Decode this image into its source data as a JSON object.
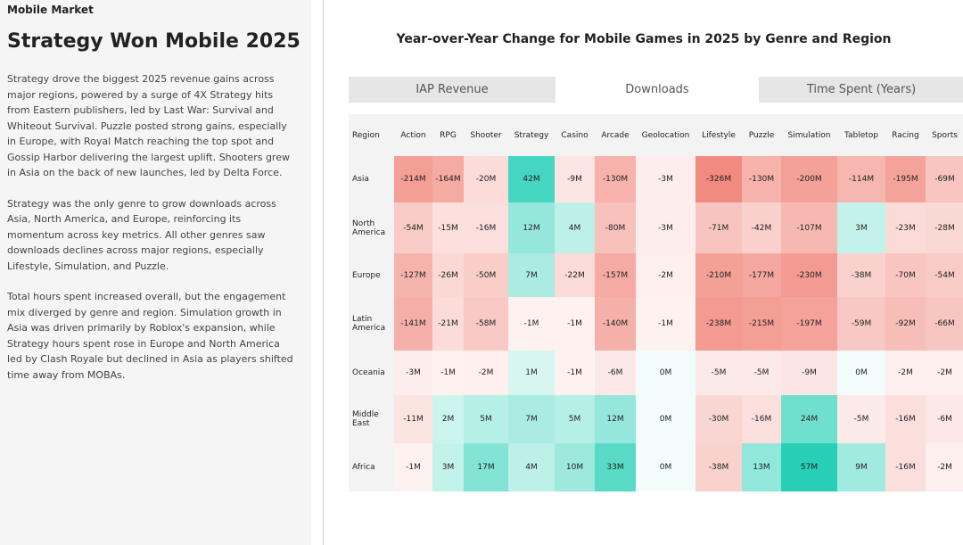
{
  "page": {
    "section": "Mobile Market",
    "headline": "Strategy Won Mobile 2025",
    "paragraphs": [
      "Strategy drove the biggest 2025 revenue gains across major regions, powered by a surge of 4X Strategy hits from Eastern publishers, led by Last War: Survival and Whiteout Survival. Puzzle posted strong gains, especially in Europe, with Royal Match reaching the top spot and Gossip Harbor delivering the largest uplift. Shooters grew in Asia on the back of new launches, led by Delta Force.",
      "Strategy was the only genre to grow downloads across Asia, North America, and Europe, reinforcing its momentum across key metrics. All other genres saw downloads declines across major regions, especially Lifestyle, Simulation, and Puzzle.",
      "Total hours spent increased overall, but the engagement mix diverged by genre and region. Simulation growth in Asia was driven primarily by Roblox's expansion, while Strategy hours spent rose in Europe and North America led by Clash Royale but declined in Asia as players shifted time away from MOBAs."
    ],
    "tabs": [
      "IAP Revenue",
      "Downloads",
      "Time Spent (Years)"
    ],
    "active_tab": 1
  },
  "chart_data": {
    "type": "heatmap",
    "title": "Year-over-Year Change for Mobile Games in 2025 by Genre and Region",
    "row_header": "Region",
    "categories": [
      "Action",
      "RPG",
      "Shooter",
      "Strategy",
      "Casino",
      "Arcade",
      "Geolocation",
      "Lifestyle",
      "Puzzle",
      "Simulation",
      "Tabletop",
      "Racing",
      "Sports"
    ],
    "rows": [
      "Asia",
      "North America",
      "Europe",
      "Latin America",
      "Oceania",
      "Middle East",
      "Africa"
    ],
    "values": [
      [
        -214,
        -164,
        -20,
        42,
        -9,
        -130,
        -3,
        -326,
        -130,
        -200,
        -114,
        -195,
        -69
      ],
      [
        -54,
        -15,
        -16,
        12,
        4,
        -80,
        -3,
        -71,
        -42,
        -107,
        3,
        -23,
        -28
      ],
      [
        -127,
        -26,
        -50,
        7,
        -22,
        -157,
        -2,
        -210,
        -177,
        -230,
        -38,
        -70,
        -54
      ],
      [
        -141,
        -21,
        -58,
        -1,
        -1,
        -140,
        -1,
        -238,
        -215,
        -197,
        -59,
        -92,
        -66
      ],
      [
        -3,
        -1,
        -2,
        1,
        -1,
        -6,
        0,
        -5,
        -5,
        -9,
        0,
        -2,
        -2
      ],
      [
        -11,
        2,
        5,
        7,
        5,
        12,
        0,
        -30,
        -16,
        24,
        -5,
        -16,
        -6
      ],
      [
        -1,
        3,
        17,
        4,
        10,
        33,
        0,
        -38,
        13,
        57,
        9,
        -16,
        -2
      ]
    ],
    "value_labels": [
      [
        "-214M",
        "-164M",
        "-20M",
        "42M",
        "-9M",
        "-130M",
        "-3M",
        "-326M",
        "-130M",
        "-200M",
        "-114M",
        "-195M",
        "-69M"
      ],
      [
        "-54M",
        "-15M",
        "-16M",
        "12M",
        "4M",
        "-80M",
        "-3M",
        "-71M",
        "-42M",
        "-107M",
        "3M",
        "-23M",
        "-28M"
      ],
      [
        "-127M",
        "-26M",
        "-50M",
        "7M",
        "-22M",
        "-157M",
        "-2M",
        "-210M",
        "-177M",
        "-230M",
        "-38M",
        "-70M",
        "-54M"
      ],
      [
        "-141M",
        "-21M",
        "-58M",
        "-1M",
        "-1M",
        "-140M",
        "-1M",
        "-238M",
        "-215M",
        "-197M",
        "-59M",
        "-92M",
        "-66M"
      ],
      [
        "-3M",
        "-1M",
        "-2M",
        "1M",
        "-1M",
        "-6M",
        "0M",
        "-5M",
        "-5M",
        "-9M",
        "0M",
        "-2M",
        "-2M"
      ],
      [
        "-11M",
        "2M",
        "5M",
        "7M",
        "5M",
        "12M",
        "0M",
        "-30M",
        "-16M",
        "24M",
        "-5M",
        "-16M",
        "-6M"
      ],
      [
        "-1M",
        "3M",
        "17M",
        "4M",
        "10M",
        "33M",
        "0M",
        "-38M",
        "13M",
        "57M",
        "9M",
        "-16M",
        "-2M"
      ]
    ],
    "negative_color": "#f0857a",
    "positive_color": "#1fcdb3"
  }
}
